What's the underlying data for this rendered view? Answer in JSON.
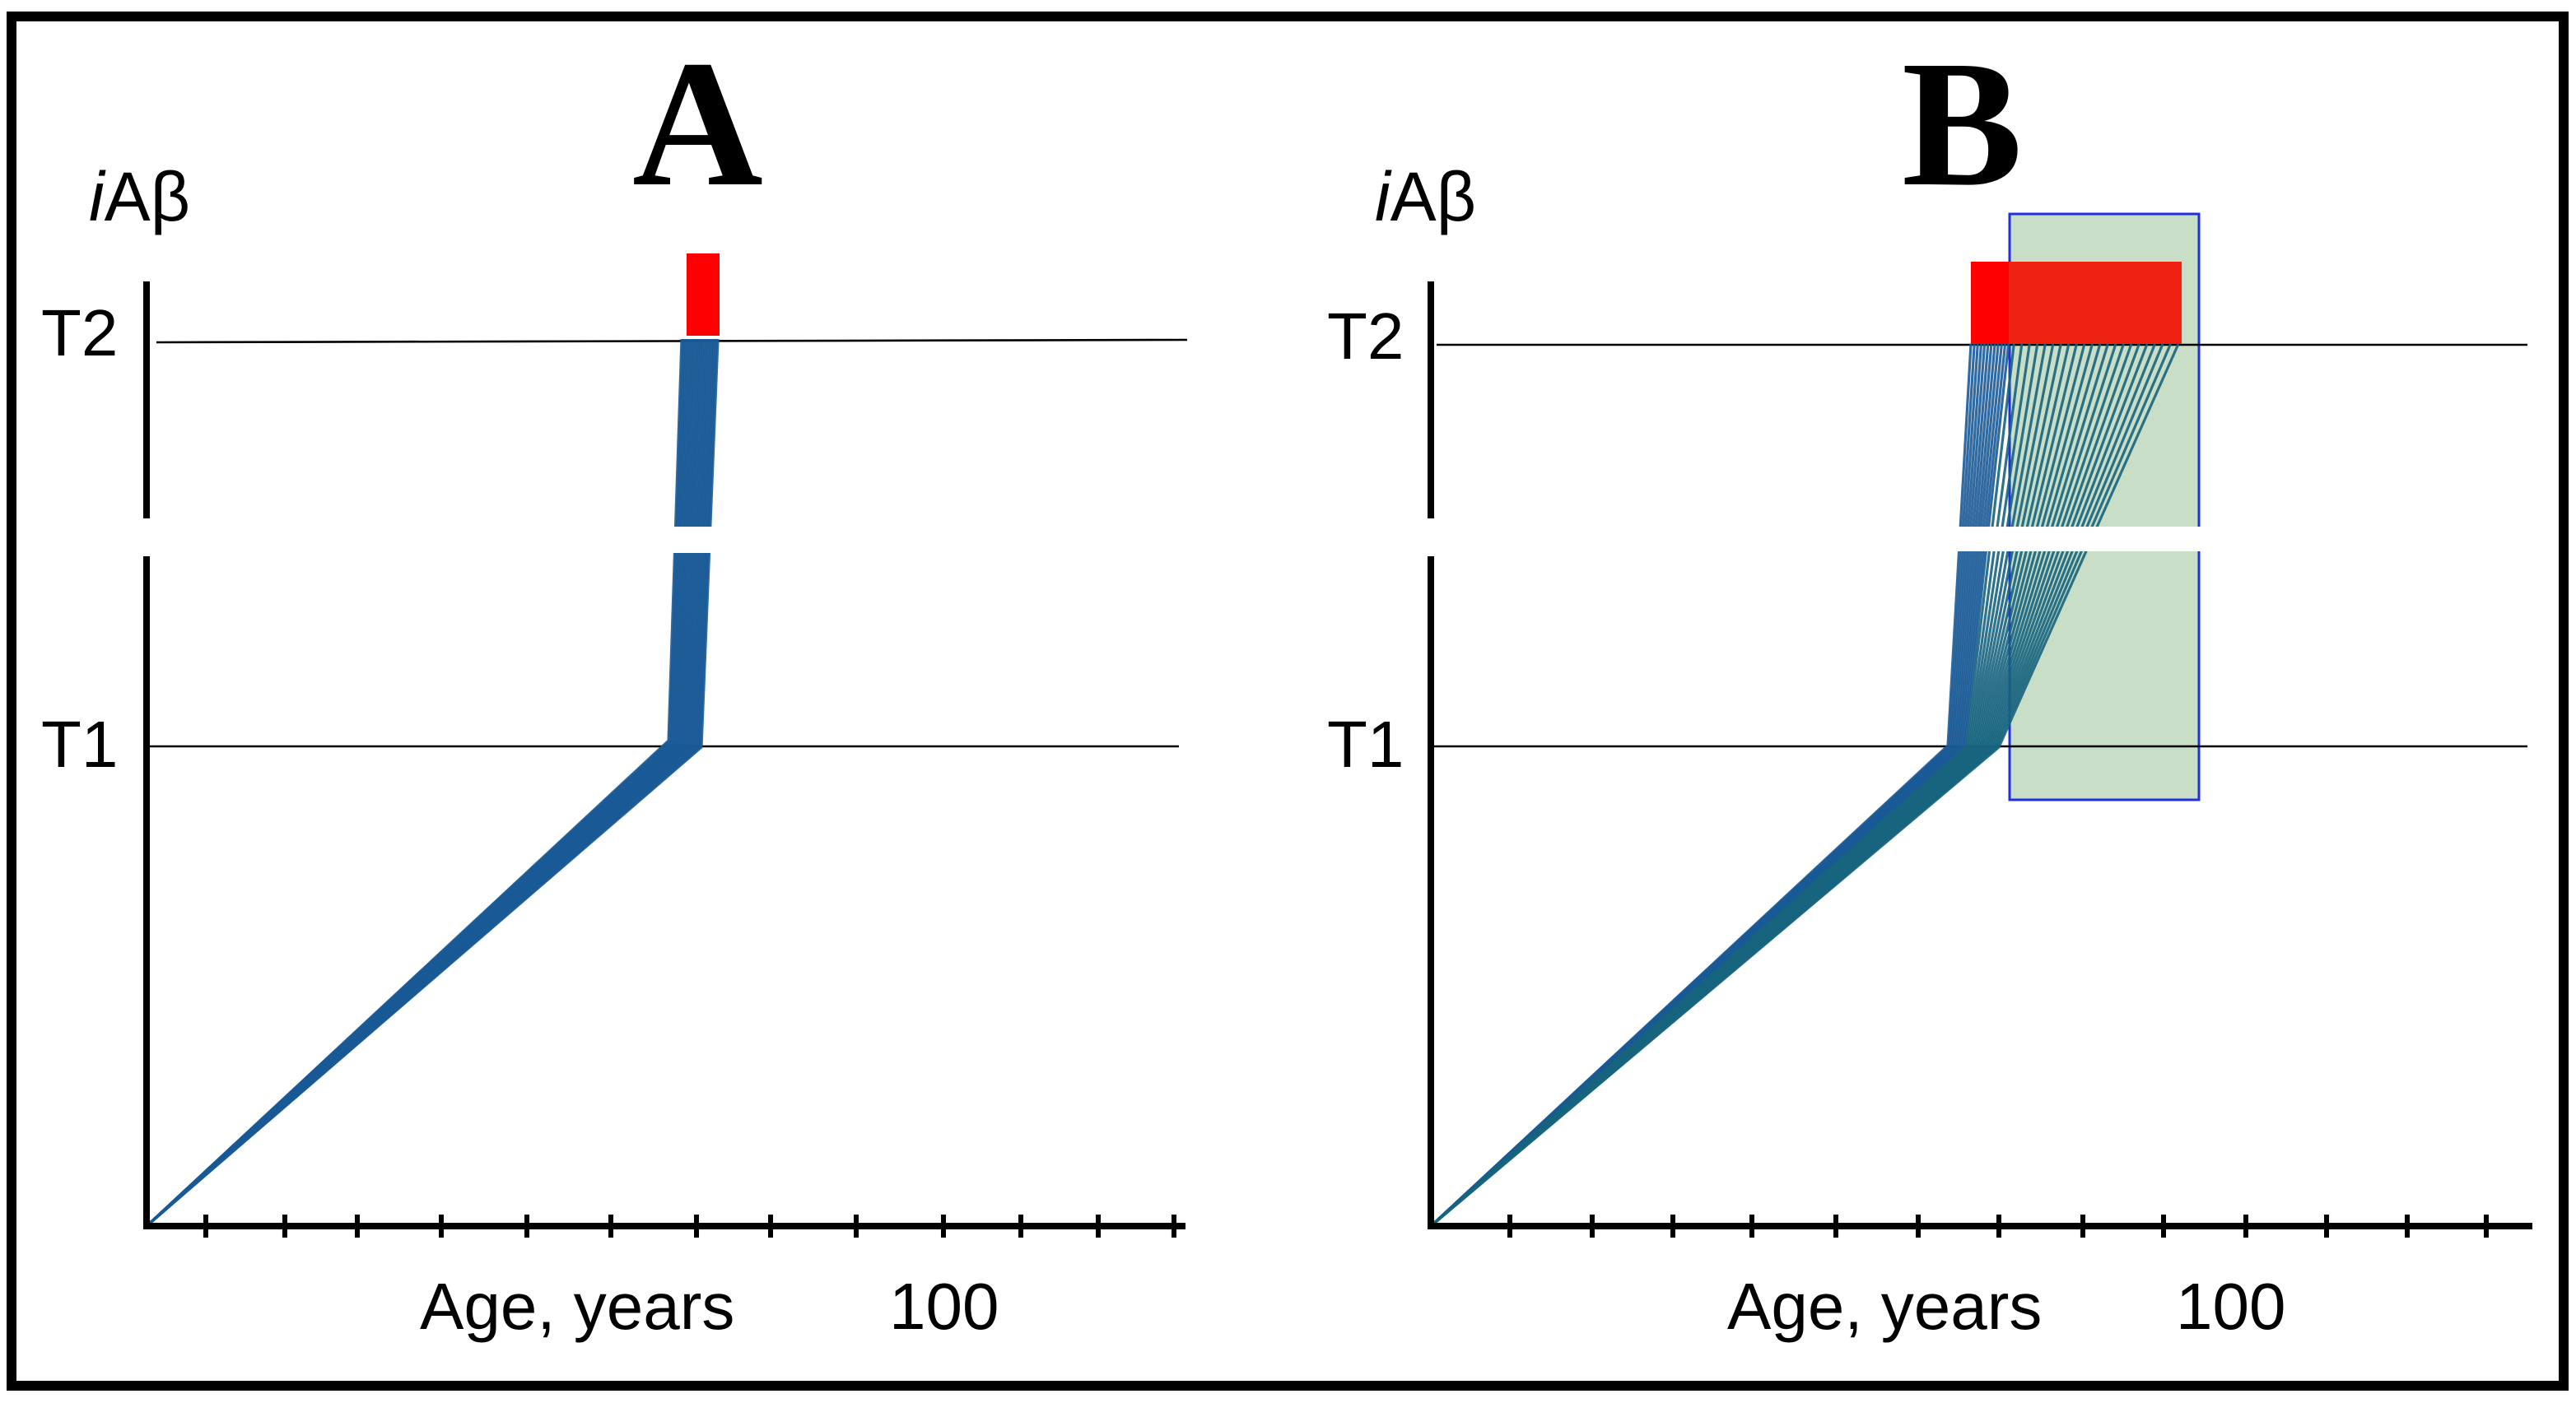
{
  "panels": [
    {
      "letter": "A",
      "y_label": {
        "italic": "i",
        "rest": "Aβ"
      },
      "thresholds": [
        "T2",
        "T1"
      ],
      "x_label": "Age, years",
      "x_tick_label": "100"
    },
    {
      "letter": "B",
      "y_label": {
        "italic": "i",
        "rest": "Aβ"
      },
      "thresholds": [
        "T2",
        "T1"
      ],
      "x_label": "Age, years",
      "x_tick_label": "100"
    }
  ],
  "colors": {
    "trajectory": "#1a5a96",
    "trajectory_late": "#17647e",
    "onset_box": "#ff0000",
    "extended_onset_box": "#ee2211",
    "treatment_window": "#c9dec6",
    "treatment_window_border": "#1f2fdd"
  }
}
